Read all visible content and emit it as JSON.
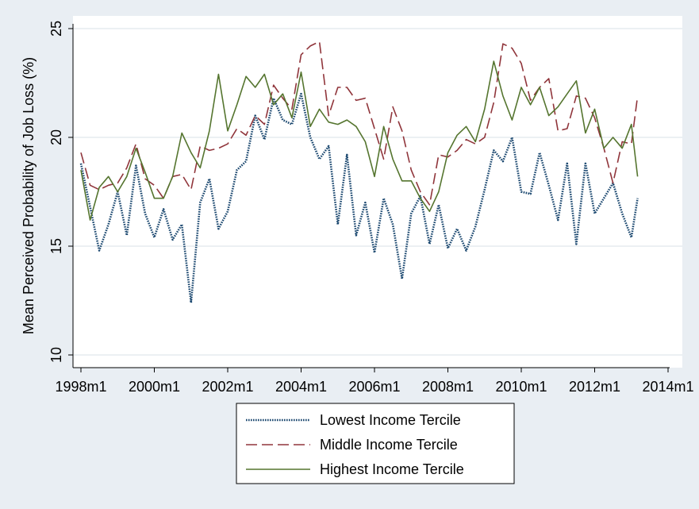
{
  "chart_data": {
    "type": "line",
    "title": "",
    "xlabel": "",
    "ylabel": "Mean Perceived Probability of Job Loss (%)",
    "ylim": [
      10,
      25
    ],
    "xlim": [
      1998.0,
      2014.0
    ],
    "grid": "horizontal",
    "legend_position": "bottom",
    "x_ticks": [
      {
        "value": 1998,
        "label": "1998m1"
      },
      {
        "value": 2000,
        "label": "2000m1"
      },
      {
        "value": 2002,
        "label": "2002m1"
      },
      {
        "value": 2004,
        "label": "2004m1"
      },
      {
        "value": 2006,
        "label": "2006m1"
      },
      {
        "value": 2008,
        "label": "2008m1"
      },
      {
        "value": 2010,
        "label": "2010m1"
      },
      {
        "value": 2012,
        "label": "2012m1"
      },
      {
        "value": 2014,
        "label": "2014m1"
      }
    ],
    "y_ticks": [
      {
        "value": 10,
        "label": "10"
      },
      {
        "value": 15,
        "label": "15"
      },
      {
        "value": 20,
        "label": "20"
      },
      {
        "value": 25,
        "label": "25"
      }
    ],
    "series": [
      {
        "name": "Lowest Income Tercile",
        "style": "dotted",
        "color": "#1a476f",
        "x": [
          1998.0,
          1998.25,
          1998.5,
          1998.75,
          1999.0,
          1999.25,
          1999.5,
          1999.75,
          2000.0,
          2000.25,
          2000.5,
          2000.75,
          2001.0,
          2001.25,
          2001.5,
          2001.75,
          2002.0,
          2002.25,
          2002.5,
          2002.75,
          2003.0,
          2003.25,
          2003.5,
          2003.75,
          2004.0,
          2004.25,
          2004.5,
          2004.75,
          2005.0,
          2005.25,
          2005.5,
          2005.75,
          2006.0,
          2006.25,
          2006.5,
          2006.75,
          2007.0,
          2007.25,
          2007.5,
          2007.75,
          2008.0,
          2008.25,
          2008.5,
          2008.75,
          2009.0,
          2009.25,
          2009.5,
          2009.75,
          2010.0,
          2010.25,
          2010.5,
          2010.75,
          2011.0,
          2011.25,
          2011.5,
          2011.75,
          2012.0,
          2012.25,
          2012.5,
          2012.75,
          2013.0,
          2013.17
        ],
        "y": [
          18.8,
          16.8,
          14.8,
          16.0,
          17.5,
          15.5,
          18.7,
          16.5,
          15.4,
          16.7,
          15.3,
          16.0,
          12.4,
          17.0,
          18.1,
          15.8,
          16.6,
          18.5,
          18.9,
          21.0,
          19.9,
          21.8,
          20.8,
          20.6,
          22.0,
          20.0,
          19.0,
          19.6,
          16.0,
          19.2,
          15.5,
          17.0,
          14.7,
          17.2,
          16.0,
          13.5,
          16.5,
          17.3,
          15.1,
          16.9,
          14.9,
          15.8,
          14.8,
          15.9,
          17.6,
          19.4,
          18.9,
          20.0,
          17.5,
          17.4,
          19.3,
          17.8,
          16.2,
          18.8,
          15.1,
          18.8,
          16.5,
          17.2,
          17.9,
          16.5,
          15.4,
          17.2
        ]
      },
      {
        "name": "Middle Income Tercile",
        "style": "dashed",
        "color": "#90353b",
        "x": [
          1998.0,
          1998.25,
          1998.5,
          1998.75,
          1999.0,
          1999.25,
          1999.5,
          1999.75,
          2000.0,
          2000.25,
          2000.5,
          2000.75,
          2001.0,
          2001.25,
          2001.5,
          2001.75,
          2002.0,
          2002.25,
          2002.5,
          2002.75,
          2003.0,
          2003.25,
          2003.5,
          2003.75,
          2004.0,
          2004.25,
          2004.5,
          2004.75,
          2005.0,
          2005.25,
          2005.5,
          2005.75,
          2006.0,
          2006.25,
          2006.5,
          2006.75,
          2007.0,
          2007.25,
          2007.5,
          2007.75,
          2008.0,
          2008.25,
          2008.5,
          2008.75,
          2009.0,
          2009.25,
          2009.5,
          2009.75,
          2010.0,
          2010.25,
          2010.5,
          2010.75,
          2011.0,
          2011.25,
          2011.5,
          2011.75,
          2012.0,
          2012.25,
          2012.5,
          2012.75,
          2013.0,
          2013.17
        ],
        "y": [
          19.3,
          17.8,
          17.6,
          17.8,
          17.9,
          18.6,
          19.7,
          18.1,
          17.8,
          17.2,
          18.2,
          18.3,
          17.6,
          19.6,
          19.4,
          19.5,
          19.7,
          20.4,
          20.1,
          21.0,
          20.6,
          22.4,
          21.8,
          21.3,
          23.8,
          24.2,
          24.4,
          21.0,
          22.3,
          22.3,
          21.7,
          21.8,
          20.4,
          19.0,
          21.4,
          20.3,
          18.5,
          17.5,
          16.9,
          19.2,
          19.1,
          19.4,
          19.9,
          19.7,
          20.0,
          21.6,
          24.3,
          24.1,
          23.4,
          21.7,
          22.3,
          22.7,
          20.3,
          20.4,
          21.9,
          21.8,
          20.9,
          19.5,
          17.9,
          19.8,
          19.7,
          21.9
        ]
      },
      {
        "name": "Highest Income Tercile",
        "style": "solid",
        "color": "#55752f",
        "x": [
          1998.0,
          1998.25,
          1998.5,
          1998.75,
          1999.0,
          1999.25,
          1999.5,
          1999.75,
          2000.0,
          2000.25,
          2000.5,
          2000.75,
          2001.0,
          2001.25,
          2001.5,
          2001.75,
          2002.0,
          2002.25,
          2002.5,
          2002.75,
          2003.0,
          2003.25,
          2003.5,
          2003.75,
          2004.0,
          2004.25,
          2004.5,
          2004.75,
          2005.0,
          2005.25,
          2005.5,
          2005.75,
          2006.0,
          2006.25,
          2006.5,
          2006.75,
          2007.0,
          2007.25,
          2007.5,
          2007.75,
          2008.0,
          2008.25,
          2008.5,
          2008.75,
          2009.0,
          2009.25,
          2009.5,
          2009.75,
          2010.0,
          2010.25,
          2010.5,
          2010.75,
          2011.0,
          2011.25,
          2011.5,
          2011.75,
          2012.0,
          2012.25,
          2012.5,
          2012.75,
          2013.0,
          2013.17
        ],
        "y": [
          18.5,
          16.2,
          17.7,
          18.2,
          17.5,
          18.2,
          19.5,
          18.4,
          17.2,
          17.2,
          18.2,
          20.2,
          19.3,
          18.6,
          20.3,
          22.9,
          20.3,
          21.5,
          22.8,
          22.3,
          22.9,
          21.5,
          22.0,
          20.9,
          23.0,
          20.5,
          21.3,
          20.7,
          20.6,
          20.8,
          20.5,
          19.8,
          18.2,
          20.5,
          19.0,
          18.0,
          18.0,
          17.2,
          16.6,
          17.5,
          19.3,
          20.1,
          20.5,
          19.8,
          21.3,
          23.5,
          21.9,
          20.8,
          22.3,
          21.5,
          22.3,
          21.0,
          21.4,
          22.0,
          22.6,
          20.2,
          21.3,
          19.5,
          20.0,
          19.5,
          20.6,
          18.2
        ]
      }
    ]
  }
}
